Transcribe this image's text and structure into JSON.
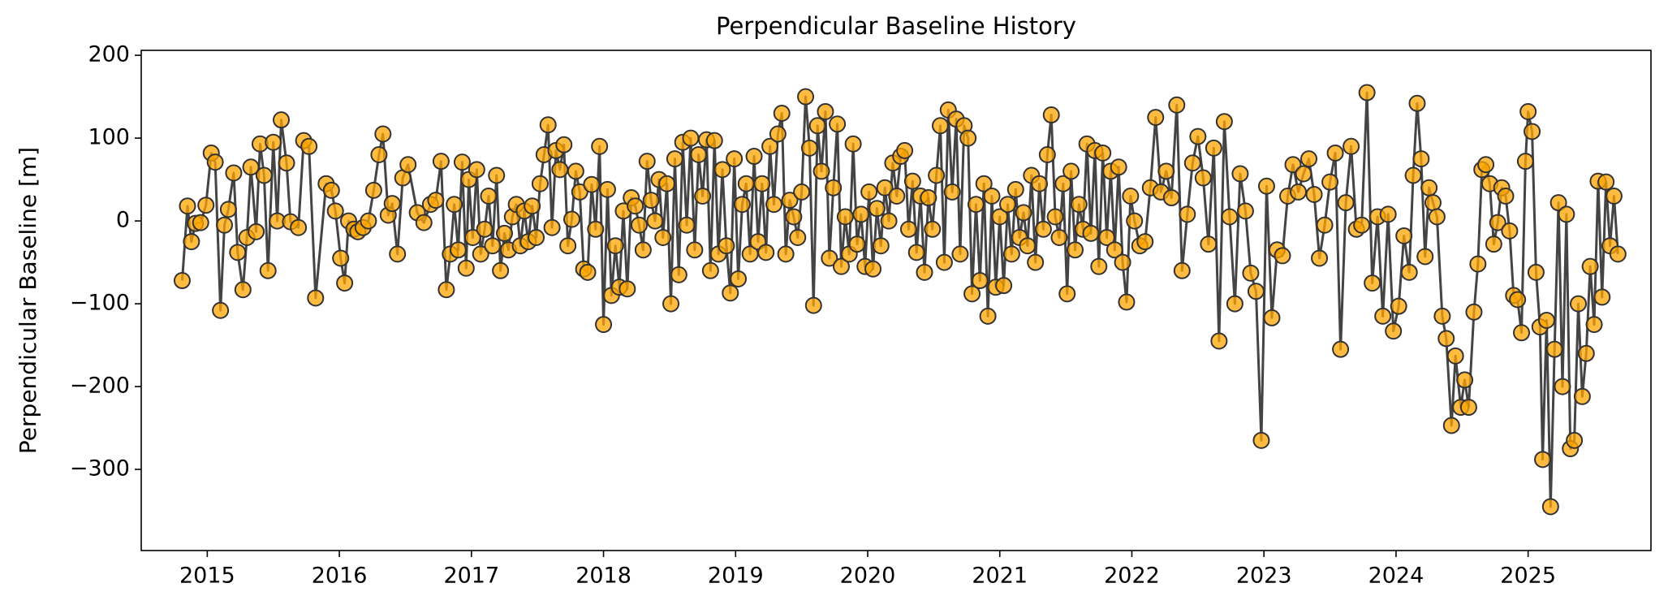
{
  "chart_data": {
    "type": "line",
    "title": "Perpendicular Baseline History",
    "y_label": "Perpendicular Baseline [m]",
    "marker_color": "#ffa500",
    "edge_color": "#333333",
    "line_color": "#444444",
    "xlim": [
      2014.5,
      2025.93
    ],
    "xticks": [
      2015,
      2016,
      2017,
      2018,
      2019,
      2020,
      2021,
      2022,
      2023,
      2024,
      2025
    ],
    "ylim": [
      -398,
      206
    ],
    "yticks": [
      {
        "value": -300,
        "label": "−300"
      },
      {
        "value": -200,
        "label": "−200"
      },
      {
        "value": -100,
        "label": "−100"
      },
      0,
      100,
      200
    ],
    "x": [
      2014.81,
      2014.85,
      2014.88,
      2014.91,
      2014.95,
      2014.99,
      2015.03,
      2015.06,
      2015.1,
      2015.13,
      2015.16,
      2015.2,
      2015.23,
      2015.27,
      2015.3,
      2015.33,
      2015.37,
      2015.4,
      2015.43,
      2015.46,
      2015.5,
      2015.53,
      2015.56,
      2015.6,
      2015.63,
      2015.69,
      2015.73,
      2015.77,
      2015.82,
      2015.9,
      2015.94,
      2015.97,
      2016.01,
      2016.04,
      2016.07,
      2016.11,
      2016.14,
      2016.18,
      2016.22,
      2016.26,
      2016.3,
      2016.33,
      2016.37,
      2016.4,
      2016.44,
      2016.48,
      2016.52,
      2016.59,
      2016.64,
      2016.69,
      2016.73,
      2016.77,
      2016.81,
      2016.84,
      2016.87,
      2016.9,
      2016.93,
      2016.96,
      2016.98,
      2017.01,
      2017.04,
      2017.07,
      2017.1,
      2017.13,
      2017.16,
      2017.19,
      2017.22,
      2017.25,
      2017.28,
      2017.31,
      2017.34,
      2017.37,
      2017.4,
      2017.43,
      2017.46,
      2017.49,
      2017.52,
      2017.55,
      2017.58,
      2017.61,
      2017.64,
      2017.67,
      2017.7,
      2017.73,
      2017.76,
      2017.79,
      2017.82,
      2017.85,
      2017.88,
      2017.91,
      2017.94,
      2017.97,
      2018.0,
      2018.03,
      2018.06,
      2018.09,
      2018.12,
      2018.15,
      2018.18,
      2018.21,
      2018.24,
      2018.27,
      2018.3,
      2018.33,
      2018.36,
      2018.39,
      2018.42,
      2018.45,
      2018.48,
      2018.51,
      2018.54,
      2018.57,
      2018.6,
      2018.63,
      2018.66,
      2018.69,
      2018.72,
      2018.75,
      2018.78,
      2018.81,
      2018.84,
      2018.87,
      2018.9,
      2018.93,
      2018.96,
      2018.99,
      2019.02,
      2019.05,
      2019.08,
      2019.11,
      2019.14,
      2019.17,
      2019.2,
      2019.23,
      2019.26,
      2019.29,
      2019.32,
      2019.35,
      2019.38,
      2019.41,
      2019.44,
      2019.47,
      2019.5,
      2019.53,
      2019.56,
      2019.59,
      2019.62,
      2019.65,
      2019.68,
      2019.71,
      2019.74,
      2019.77,
      2019.8,
      2019.83,
      2019.86,
      2019.89,
      2019.92,
      2019.95,
      2019.98,
      2020.01,
      2020.04,
      2020.07,
      2020.1,
      2020.13,
      2020.16,
      2020.19,
      2020.22,
      2020.25,
      2020.28,
      2020.31,
      2020.34,
      2020.37,
      2020.4,
      2020.43,
      2020.46,
      2020.49,
      2020.52,
      2020.55,
      2020.58,
      2020.61,
      2020.64,
      2020.67,
      2020.7,
      2020.73,
      2020.76,
      2020.79,
      2020.82,
      2020.85,
      2020.88,
      2020.91,
      2020.94,
      2020.97,
      2021.0,
      2021.03,
      2021.06,
      2021.09,
      2021.12,
      2021.15,
      2021.18,
      2021.21,
      2021.24,
      2021.27,
      2021.3,
      2021.33,
      2021.36,
      2021.39,
      2021.42,
      2021.45,
      2021.48,
      2021.51,
      2021.54,
      2021.57,
      2021.6,
      2021.63,
      2021.66,
      2021.69,
      2021.72,
      2021.75,
      2021.78,
      2021.81,
      2021.84,
      2021.87,
      2021.9,
      2021.93,
      2021.96,
      2021.99,
      2022.02,
      2022.06,
      2022.1,
      2022.14,
      2022.18,
      2022.22,
      2022.26,
      2022.3,
      2022.34,
      2022.38,
      2022.42,
      2022.46,
      2022.5,
      2022.54,
      2022.58,
      2022.62,
      2022.66,
      2022.7,
      2022.74,
      2022.78,
      2022.82,
      2022.86,
      2022.9,
      2022.94,
      2022.98,
      2023.02,
      2023.06,
      2023.1,
      2023.14,
      2023.18,
      2023.22,
      2023.26,
      2023.3,
      2023.34,
      2023.38,
      2023.42,
      2023.46,
      2023.5,
      2023.54,
      2023.58,
      2023.62,
      2023.66,
      2023.7,
      2023.74,
      2023.78,
      2023.82,
      2023.86,
      2023.9,
      2023.94,
      2023.98,
      2024.02,
      2024.06,
      2024.1,
      2024.13,
      2024.16,
      2024.19,
      2024.22,
      2024.25,
      2024.28,
      2024.31,
      2024.35,
      2024.38,
      2024.42,
      2024.45,
      2024.49,
      2024.52,
      2024.55,
      2024.59,
      2024.62,
      2024.65,
      2024.68,
      2024.71,
      2024.74,
      2024.77,
      2024.8,
      2024.83,
      2024.86,
      2024.89,
      2024.92,
      2024.95,
      2024.98,
      2025.0,
      2025.03,
      2025.06,
      2025.09,
      2025.11,
      2025.14,
      2025.17,
      2025.2,
      2025.23,
      2025.26,
      2025.29,
      2025.32,
      2025.35,
      2025.38,
      2025.41,
      2025.44,
      2025.47,
      2025.5,
      2025.53,
      2025.56,
      2025.59,
      2025.62,
      2025.65,
      2025.68
    ],
    "values": [
      -72,
      18,
      -25,
      -3,
      -2,
      19,
      82,
      71,
      -108,
      -5,
      14,
      58,
      -38,
      -83,
      -20,
      65,
      -13,
      93,
      55,
      -60,
      95,
      0,
      122,
      70,
      -1,
      -8,
      97,
      90,
      -93,
      45,
      37,
      12,
      -45,
      -75,
      0,
      -10,
      -13,
      -8,
      0,
      37,
      80,
      105,
      7,
      21,
      -40,
      52,
      68,
      10,
      -2,
      20,
      25,
      72,
      -83,
      -40,
      20,
      -35,
      71,
      -57,
      50,
      -20,
      62,
      -40,
      -10,
      30,
      -30,
      55,
      -60,
      -15,
      -35,
      5,
      20,
      -30,
      12,
      -25,
      18,
      -20,
      45,
      80,
      116,
      -8,
      85,
      62,
      92,
      -30,
      2,
      60,
      35,
      -58,
      -62,
      44,
      -10,
      90,
      -125,
      38,
      -90,
      -30,
      -80,
      12,
      -82,
      28,
      18,
      -5,
      -35,
      72,
      25,
      0,
      50,
      -20,
      45,
      -100,
      75,
      -65,
      95,
      -5,
      100,
      -35,
      80,
      30,
      98,
      -60,
      97,
      -40,
      62,
      -30,
      -87,
      75,
      -70,
      20,
      45,
      -40,
      78,
      -25,
      45,
      -38,
      90,
      20,
      105,
      130,
      -40,
      25,
      5,
      -20,
      35,
      150,
      88,
      -102,
      115,
      60,
      132,
      -45,
      40,
      117,
      -55,
      5,
      -40,
      93,
      -28,
      8,
      -55,
      35,
      -58,
      15,
      -30,
      40,
      0,
      70,
      30,
      78,
      85,
      -10,
      48,
      -38,
      30,
      -62,
      28,
      -10,
      55,
      115,
      -50,
      134,
      35,
      123,
      -40,
      115,
      100,
      -88,
      20,
      -72,
      45,
      -115,
      30,
      -80,
      5,
      -78,
      20,
      -40,
      38,
      -20,
      10,
      -30,
      55,
      -50,
      45,
      -10,
      80,
      128,
      5,
      -20,
      45,
      -88,
      60,
      -35,
      20,
      -10,
      93,
      -15,
      85,
      -55,
      82,
      -20,
      60,
      -35,
      65,
      -50,
      -98,
      30,
      0,
      -30,
      -25,
      40,
      125,
      35,
      60,
      28,
      140,
      -60,
      8,
      70,
      102,
      52,
      -28,
      88,
      -145,
      120,
      5,
      -100,
      57,
      12,
      -63,
      -85,
      -265,
      42,
      -117,
      -35,
      -42,
      30,
      68,
      35,
      57,
      75,
      32,
      -45,
      -5,
      47,
      82,
      -155,
      22,
      90,
      -10,
      -5,
      155,
      -75,
      5,
      -115,
      8,
      -133,
      -103,
      -18,
      -62,
      55,
      142,
      75,
      -43,
      40,
      22,
      5,
      -115,
      -142,
      -247,
      -163,
      -225,
      -192,
      -225,
      -110,
      -52,
      62,
      68,
      45,
      -28,
      -2,
      40,
      30,
      -12,
      -90,
      -95,
      -135,
      72,
      132,
      108,
      -62,
      -128,
      -288,
      -120,
      -345,
      -155,
      22,
      -200,
      8,
      -275,
      -265,
      -100,
      -212,
      -160,
      -55,
      -125,
      48,
      -92,
      47,
      -30,
      30,
      -40
    ]
  }
}
